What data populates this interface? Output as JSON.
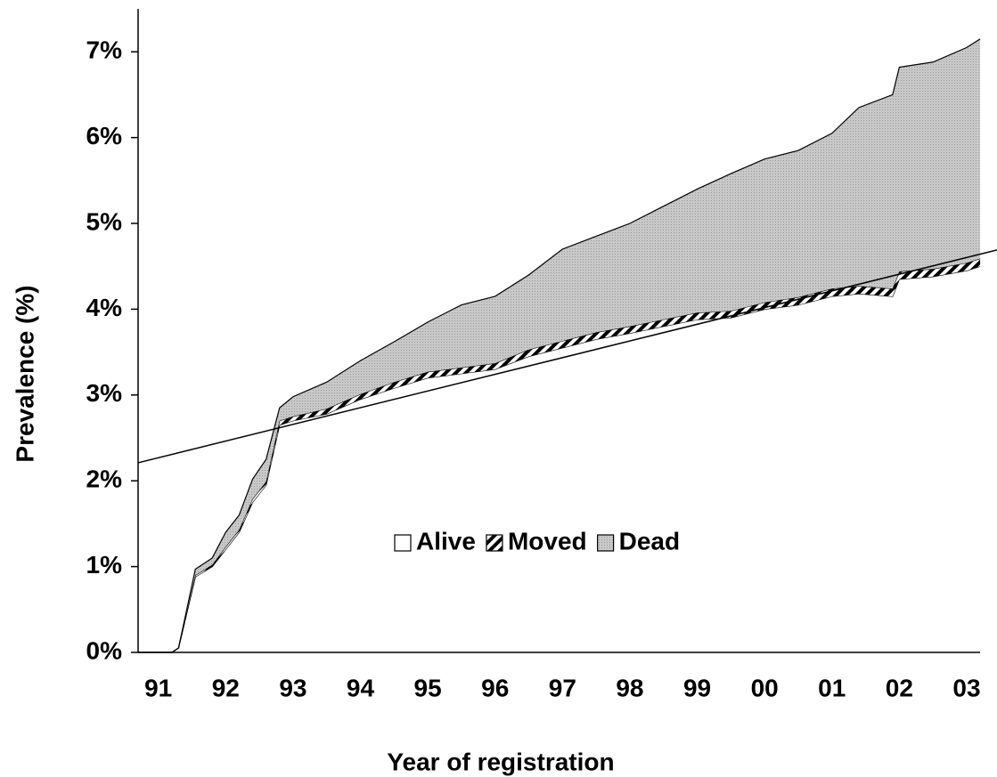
{
  "chart_data": {
    "type": "stacked-area",
    "x_label": "Year of registration",
    "y_label": "Prevalence (%)",
    "x": [
      1990.7,
      1991.2,
      1991.3,
      1991.55,
      1991.8,
      1992.0,
      1992.2,
      1992.4,
      1992.6,
      1992.8,
      1993.0,
      1993.5,
      1994.0,
      1994.5,
      1995.0,
      1995.5,
      1996.0,
      1996.5,
      1997.0,
      1997.5,
      1998.0,
      1998.5,
      1999.0,
      1999.5,
      2000.0,
      2000.5,
      2001.0,
      2001.4,
      2001.9,
      2002.0,
      2002.5,
      2003.0,
      2003.2
    ],
    "series": [
      {
        "name": "Alive",
        "color": "#ffffff",
        "pattern": "solid",
        "values": [
          0,
          0,
          0.05,
          0.88,
          1.0,
          1.2,
          1.4,
          1.75,
          1.95,
          2.65,
          2.7,
          2.78,
          2.95,
          3.08,
          3.2,
          3.25,
          3.3,
          3.45,
          3.55,
          3.65,
          3.72,
          3.8,
          3.88,
          3.9,
          4.0,
          4.05,
          4.15,
          4.18,
          4.15,
          4.35,
          4.38,
          4.45,
          4.5
        ]
      },
      {
        "name": "Moved",
        "color": "#000000",
        "pattern": "stripes",
        "values": [
          0,
          0,
          0,
          0.02,
          0.02,
          0.03,
          0.03,
          0.04,
          0.04,
          0.05,
          0.05,
          0.06,
          0.06,
          0.07,
          0.07,
          0.07,
          0.07,
          0.08,
          0.08,
          0.08,
          0.08,
          0.08,
          0.08,
          0.08,
          0.08,
          0.09,
          0.09,
          0.09,
          0.09,
          0.09,
          0.09,
          0.09,
          0.09
        ]
      },
      {
        "name": "Dead",
        "color": "#c8c8c8",
        "pattern": "dots",
        "values": [
          0,
          0,
          0,
          0.07,
          0.08,
          0.17,
          0.17,
          0.23,
          0.26,
          0.15,
          0.23,
          0.31,
          0.39,
          0.47,
          0.58,
          0.73,
          0.78,
          0.87,
          1.07,
          1.12,
          1.2,
          1.32,
          1.44,
          1.6,
          1.67,
          1.71,
          1.81,
          2.08,
          2.26,
          2.38,
          2.41,
          2.51,
          2.56
        ]
      }
    ],
    "trendline": {
      "x": [
        1990.7,
        2003.45
      ],
      "values": [
        2.21,
        4.69
      ]
    },
    "xlim": [
      1990.7,
      2003.45
    ],
    "ylim": [
      0,
      7.5
    ],
    "xticks": [
      {
        "value": 1991,
        "label": "91"
      },
      {
        "value": 1992,
        "label": "92"
      },
      {
        "value": 1993,
        "label": "93"
      },
      {
        "value": 1994,
        "label": "94"
      },
      {
        "value": 1995,
        "label": "95"
      },
      {
        "value": 1996,
        "label": "96"
      },
      {
        "value": 1997,
        "label": "97"
      },
      {
        "value": 1998,
        "label": "98"
      },
      {
        "value": 1999,
        "label": "99"
      },
      {
        "value": 2000,
        "label": "00"
      },
      {
        "value": 2001,
        "label": "01"
      },
      {
        "value": 2002,
        "label": "02"
      },
      {
        "value": 2003,
        "label": "03"
      }
    ],
    "yticks": [
      {
        "value": 0,
        "label": "0%"
      },
      {
        "value": 1,
        "label": "1%"
      },
      {
        "value": 2,
        "label": "2%"
      },
      {
        "value": 3,
        "label": "3%"
      },
      {
        "value": 4,
        "label": "4%"
      },
      {
        "value": 5,
        "label": "5%"
      },
      {
        "value": 6,
        "label": "6%"
      },
      {
        "value": 7,
        "label": "7%"
      }
    ],
    "grid": false,
    "legend": "center"
  }
}
